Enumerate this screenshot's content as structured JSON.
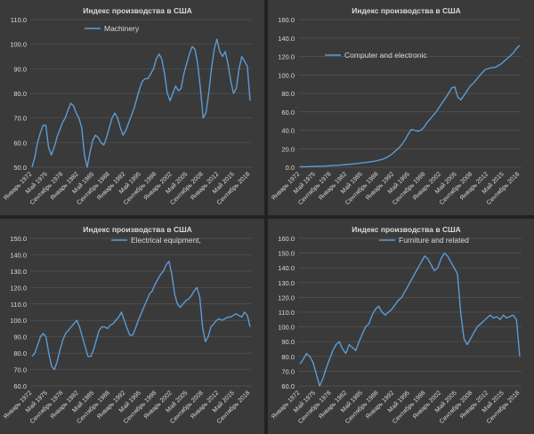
{
  "chart_data": [
    {
      "type": "line",
      "title": "Индекс производства в США",
      "series": [
        {
          "name": "Machinery",
          "values": [
            50,
            54,
            60,
            64,
            67,
            67,
            58,
            55,
            58,
            62,
            65,
            68,
            70,
            73,
            76,
            75,
            72,
            70,
            66,
            55,
            50,
            56,
            61,
            63,
            62,
            60,
            59,
            62,
            66,
            70,
            72,
            70,
            66,
            63,
            65,
            68,
            71,
            74,
            78,
            82,
            85,
            86,
            86,
            88,
            90,
            94,
            96,
            94,
            88,
            80,
            77,
            80,
            83,
            81,
            82,
            88,
            92,
            96,
            99,
            98,
            92,
            82,
            70,
            72,
            80,
            90,
            98,
            102,
            97,
            95,
            97,
            92,
            85,
            80,
            82,
            90,
            95,
            93,
            91,
            77
          ]
        }
      ],
      "x_ticks": [
        "Январь 1972",
        "Май 1975",
        "Сентябрь 1978",
        "Январь 1982",
        "Май 1985",
        "Сентябрь 1988",
        "Январь 1992",
        "Май 1995",
        "Сентябрь 1998",
        "Январь 2002",
        "Май 2005",
        "Сентябрь 2008",
        "Январь 2012",
        "Май 2015",
        "Сентябрь 2018"
      ],
      "y_ticks": [
        "50.0",
        "60.0",
        "70.0",
        "80.0",
        "90.0",
        "100.0",
        "110.0"
      ],
      "ylim": [
        50,
        110
      ],
      "grid": true,
      "legend": "top-left"
    },
    {
      "type": "line",
      "title": "Индекс производства в США",
      "series": [
        {
          "name": "Computer and electronic",
          "values": [
            0.5,
            0.5,
            0.6,
            0.7,
            0.8,
            0.9,
            1,
            1.1,
            1.2,
            1.4,
            1.6,
            1.8,
            2,
            2.3,
            2.6,
            2.9,
            3.2,
            3.5,
            3.8,
            4.2,
            4.6,
            5,
            5.5,
            6,
            6.5,
            7.2,
            8,
            9,
            10.5,
            12.5,
            15,
            18,
            21,
            25,
            30,
            36,
            41,
            40,
            39,
            40,
            43,
            48,
            52,
            56,
            60,
            65,
            70,
            75,
            80,
            86,
            87,
            76,
            73,
            78,
            83,
            88,
            91,
            95,
            99,
            103,
            106,
            107,
            108,
            108,
            110,
            112,
            115,
            118,
            121,
            124,
            129,
            132
          ]
        }
      ],
      "x_ticks": [
        "Январь 1972",
        "Май 1975",
        "Сентябрь 1978",
        "Январь 1982",
        "Май 1985",
        "Сентябрь 1988",
        "Январь 1992",
        "Май 1995",
        "Сентябрь 1998",
        "Январь 2002",
        "Май 2005",
        "Сентябрь 2008",
        "Январь 2012",
        "Май 2015",
        "Сентябрь 2018"
      ],
      "y_ticks": [
        "0.0",
        "20.0",
        "40.0",
        "60.0",
        "80.0",
        "100.0",
        "120.0",
        "140.0",
        "160.0"
      ],
      "ylim": [
        0,
        160
      ],
      "grid": true,
      "legend": "top-left"
    },
    {
      "type": "line",
      "title": "Индекс производства в США",
      "series": [
        {
          "name": "Electrical equipment,",
          "values": [
            78,
            80,
            85,
            90,
            92,
            90,
            80,
            72,
            70,
            75,
            82,
            88,
            92,
            94,
            96,
            98,
            100,
            96,
            90,
            84,
            78,
            78,
            82,
            88,
            94,
            96,
            96,
            95,
            97,
            98,
            100,
            102,
            105,
            100,
            95,
            91,
            91,
            95,
            100,
            104,
            108,
            112,
            116,
            118,
            122,
            125,
            128,
            130,
            134,
            136,
            128,
            116,
            110,
            108,
            110,
            112,
            113,
            115,
            118,
            120,
            114,
            96,
            87,
            90,
            96,
            98,
            100,
            101,
            100,
            101,
            102,
            102,
            103,
            104,
            103,
            102,
            105,
            103,
            96
          ]
        }
      ],
      "x_ticks": [
        "Январь 1972",
        "Май 1975",
        "Сентябрь 1978",
        "Январь 1982",
        "Май 1985",
        "Сентябрь 1988",
        "Январь 1992",
        "Май 1995",
        "Сентябрь 1998",
        "Январь 2002",
        "Май 2005",
        "Сентябрь 2008",
        "Январь 2012",
        "Май 2015",
        "Сентябрь 2018"
      ],
      "y_ticks": [
        "60.0",
        "70.0",
        "80.0",
        "90.0",
        "100.0",
        "110.0",
        "120.0",
        "130.0",
        "140.0",
        "150.0"
      ],
      "ylim": [
        60,
        150
      ],
      "grid": true,
      "legend": "top-left"
    },
    {
      "type": "line",
      "title": "Индекс производства в США",
      "series": [
        {
          "name": "Furniture and related",
          "values": [
            75,
            78,
            82,
            80,
            76,
            68,
            60,
            65,
            72,
            78,
            84,
            88,
            90,
            85,
            82,
            88,
            86,
            84,
            90,
            95,
            100,
            102,
            108,
            112,
            114,
            110,
            108,
            110,
            112,
            115,
            118,
            120,
            124,
            128,
            132,
            136,
            140,
            144,
            148,
            146,
            142,
            138,
            140,
            146,
            150,
            148,
            144,
            140,
            136,
            110,
            92,
            88,
            92,
            96,
            100,
            102,
            104,
            106,
            108,
            106,
            107,
            105,
            108,
            106,
            107,
            108,
            105,
            80
          ]
        }
      ],
      "x_ticks": [
        "Январь 1972",
        "Май 1975",
        "Сентябрь 1978",
        "Январь 1982",
        "Май 1985",
        "Сентябрь 1988",
        "Январь 1992",
        "Май 1995",
        "Сентябрь 1998",
        "Январь 2002",
        "Май 2005",
        "Сентябрь 2008",
        "Январь 2012",
        "Май 2015",
        "Сентябрь 2018"
      ],
      "y_ticks": [
        "60.0",
        "70.0",
        "80.0",
        "90.0",
        "100.0",
        "110.0",
        "120.0",
        "130.0",
        "140.0",
        "150.0",
        "160.0"
      ],
      "ylim": [
        60,
        160
      ],
      "grid": true,
      "legend": "top-left"
    }
  ]
}
